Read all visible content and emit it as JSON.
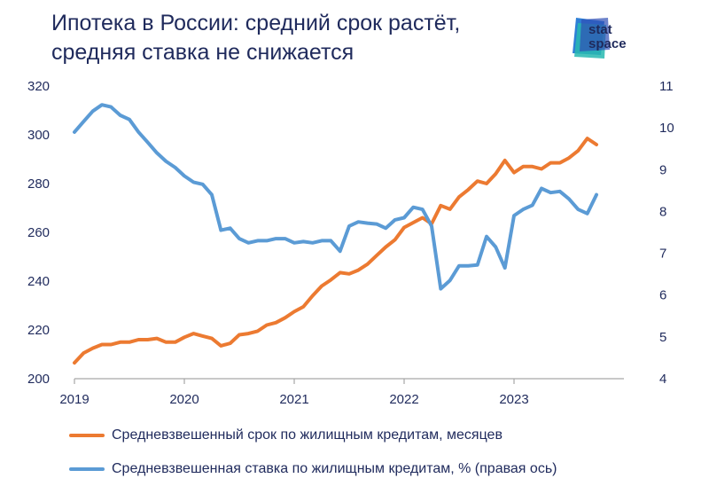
{
  "title_lines": [
    "Ипотека в России: средний срок растёт,",
    "средняя ставка не снижается"
  ],
  "logo": {
    "line1": "stat",
    "line2": "space",
    "colors": [
      "#2e7fd6",
      "#27b8b0",
      "#2f4fb5"
    ]
  },
  "chart_data": {
    "type": "line",
    "title": "Ипотека в России: средний срок растёт, средняя ставка не снижается",
    "x_ticks": [
      "2019",
      "2020",
      "2021",
      "2022",
      "2023"
    ],
    "x_range": [
      2019.0,
      2024.0
    ],
    "y_left": {
      "ticks": [
        "200",
        "220",
        "240",
        "260",
        "280",
        "300",
        "320"
      ],
      "range": [
        200,
        320
      ]
    },
    "y_right": {
      "ticks": [
        "4",
        "5",
        "6",
        "7",
        "8",
        "9",
        "10",
        "11"
      ],
      "range": [
        4,
        11
      ]
    },
    "grid": false,
    "legend_position": "bottom",
    "series": [
      {
        "name": "Средневзвешенный срок по жилищным кредитам, месяцев",
        "axis": "left",
        "color": "#ec7a31",
        "x": [
          2019.0,
          2019.083,
          2019.167,
          2019.25,
          2019.333,
          2019.417,
          2019.5,
          2019.583,
          2019.667,
          2019.75,
          2019.833,
          2019.917,
          2020.0,
          2020.083,
          2020.167,
          2020.25,
          2020.333,
          2020.417,
          2020.5,
          2020.583,
          2020.667,
          2020.75,
          2020.833,
          2020.917,
          2021.0,
          2021.083,
          2021.167,
          2021.25,
          2021.333,
          2021.417,
          2021.5,
          2021.583,
          2021.667,
          2021.75,
          2021.833,
          2021.917,
          2022.0,
          2022.083,
          2022.167,
          2022.25,
          2022.333,
          2022.417,
          2022.5,
          2022.583,
          2022.667,
          2022.75,
          2022.833,
          2022.917,
          2023.0,
          2023.083,
          2023.167,
          2023.25,
          2023.333,
          2023.417,
          2023.5,
          2023.583,
          2023.667,
          2023.75
        ],
        "values": [
          206.5,
          210.5,
          212.5,
          214,
          214,
          215,
          215,
          216,
          216,
          216.5,
          215,
          215,
          217,
          218.5,
          217.5,
          216.5,
          213.5,
          214.5,
          218,
          218.5,
          219.5,
          222,
          223,
          225,
          227.5,
          229.5,
          234,
          238,
          240.5,
          243.5,
          243,
          244.5,
          247,
          250.5,
          254,
          257,
          262,
          264,
          266,
          263.5,
          271,
          269.5,
          274.5,
          277.5,
          281,
          280,
          284,
          289.5,
          284.5,
          287,
          287,
          286,
          288.5,
          288.5,
          290.5,
          293.5,
          298.5,
          296
        ]
      },
      {
        "name": "Средневзвешенная ставка по жилищным кредитам, % (правая ось)",
        "axis": "right",
        "color": "#5b9bd5",
        "x": [
          2019.0,
          2019.083,
          2019.167,
          2019.25,
          2019.333,
          2019.417,
          2019.5,
          2019.583,
          2019.667,
          2019.75,
          2019.833,
          2019.917,
          2020.0,
          2020.083,
          2020.167,
          2020.25,
          2020.333,
          2020.417,
          2020.5,
          2020.583,
          2020.667,
          2020.75,
          2020.833,
          2020.917,
          2021.0,
          2021.083,
          2021.167,
          2021.25,
          2021.333,
          2021.417,
          2021.5,
          2021.583,
          2021.667,
          2021.75,
          2021.833,
          2021.917,
          2022.0,
          2022.083,
          2022.167,
          2022.25,
          2022.333,
          2022.417,
          2022.5,
          2022.583,
          2022.667,
          2022.75,
          2022.833,
          2022.917,
          2023.0,
          2023.083,
          2023.167,
          2023.25,
          2023.333,
          2023.417,
          2023.5,
          2023.583,
          2023.667,
          2023.75
        ],
        "values": [
          9.9,
          10.15,
          10.4,
          10.55,
          10.5,
          10.3,
          10.2,
          9.9,
          9.65,
          9.4,
          9.2,
          9.05,
          8.85,
          8.7,
          8.65,
          8.4,
          7.55,
          7.6,
          7.35,
          7.25,
          7.3,
          7.3,
          7.35,
          7.35,
          7.25,
          7.28,
          7.25,
          7.3,
          7.3,
          7.05,
          7.65,
          7.75,
          7.72,
          7.7,
          7.6,
          7.8,
          7.85,
          8.1,
          8.05,
          7.65,
          6.15,
          6.35,
          6.7,
          6.7,
          6.72,
          7.4,
          7.15,
          6.65,
          7.9,
          8.05,
          8.15,
          8.55,
          8.45,
          8.48,
          8.3,
          8.05,
          7.95,
          8.4
        ]
      }
    ]
  }
}
